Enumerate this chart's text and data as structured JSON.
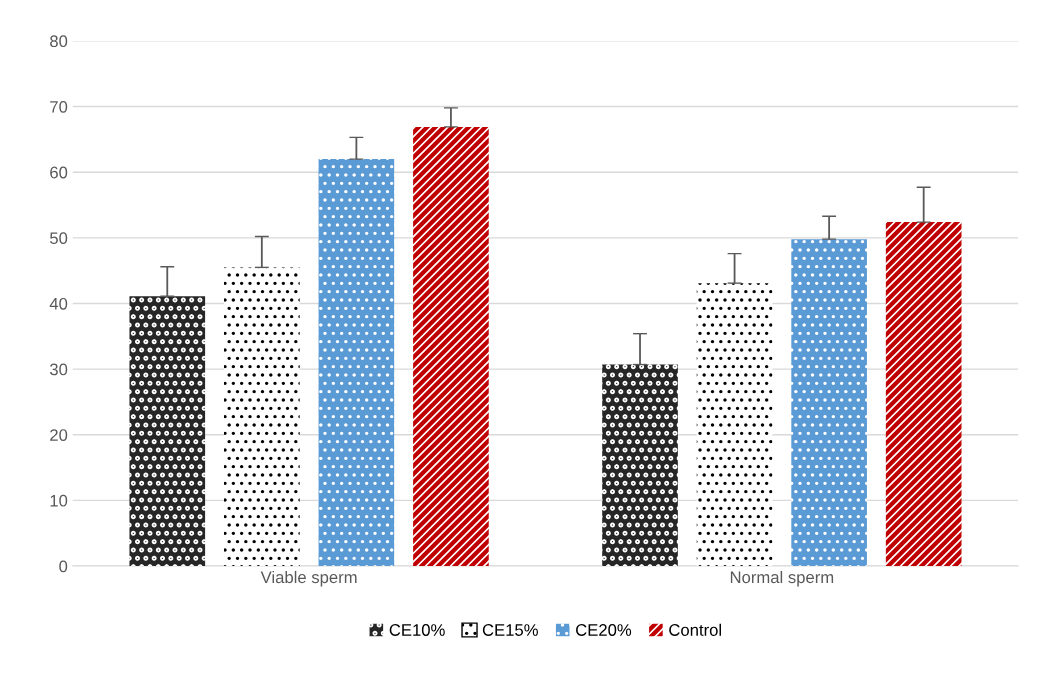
{
  "chart_data": {
    "type": "bar",
    "categories": [
      "Viable sperm",
      "Normal sperm"
    ],
    "series": [
      {
        "name": "CE10%",
        "color": "#262626",
        "values": [
          41.1,
          30.7
        ],
        "errors": [
          [
            41.1,
            45.6
          ],
          [
            30.7,
            35.4
          ]
        ]
      },
      {
        "name": "CE15%",
        "color": "#ffffff",
        "values": [
          45.5,
          43.1
        ],
        "errors": [
          [
            45.5,
            50.2
          ],
          [
            43.1,
            47.6
          ]
        ]
      },
      {
        "name": "CE20%",
        "color": "#5b9bd5",
        "values": [
          62.0,
          49.8
        ],
        "errors": [
          [
            62.0,
            65.3
          ],
          [
            49.8,
            53.3
          ]
        ]
      },
      {
        "name": "Control",
        "color": "#c00000",
        "values": [
          66.9,
          52.4
        ],
        "errors": [
          [
            66.9,
            69.8
          ],
          [
            52.4,
            57.7
          ]
        ]
      }
    ],
    "ylim": [
      0,
      80
    ],
    "yticks": [
      0,
      10,
      20,
      30,
      40,
      50,
      60,
      70,
      80
    ],
    "grid": "y",
    "legend": "bottom"
  }
}
